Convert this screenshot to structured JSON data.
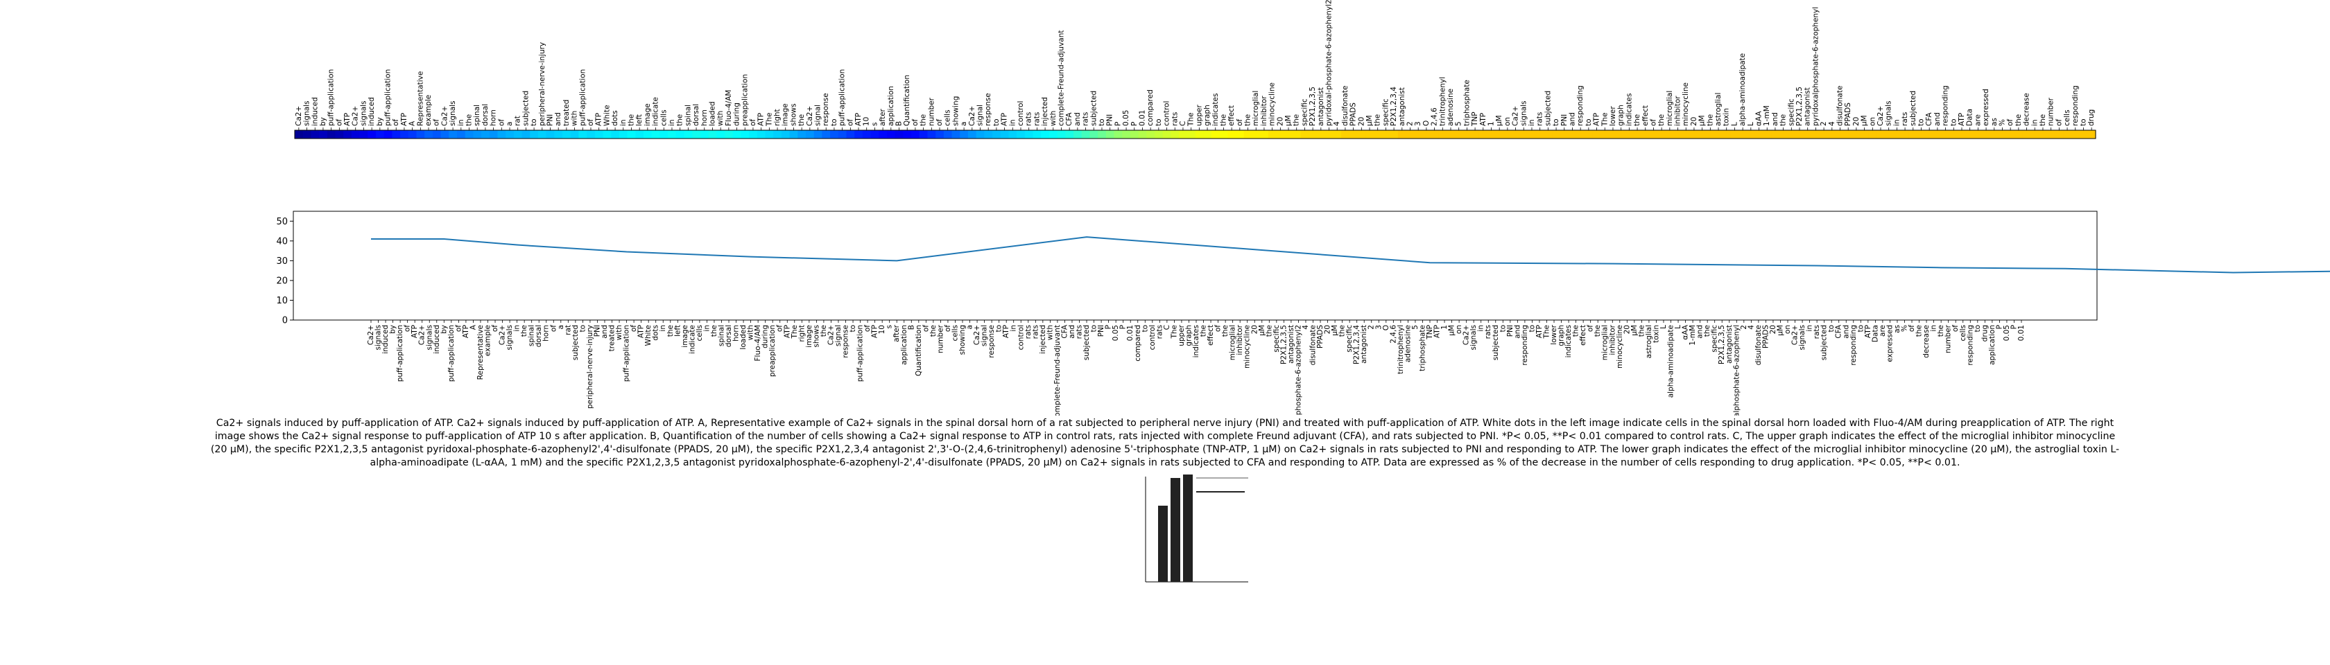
{
  "caption": "Ca2+ signals induced by puff-application of ATP. Ca2+ signals induced by puff-application of ATP. A, Representative example of Ca2+ signals in the spinal dorsal horn of a rat subjected to peripheral nerve injury (PNI) and treated with puff-application of ATP. White dots in the left image indicate cells in the spinal dorsal horn loaded with Fluo-4/AM during preapplication of ATP. The right image shows the Ca2+ signal response to puff-application of ATP 10 s after application. B, Quantification of the number of cells showing a Ca2+ signal response to ATP in control rats, rats injected with complete Freund adjuvant (CFA), and rats subjected to PNI. *P< 0.05, **P< 0.01 compared to control rats. C, The upper graph indicates the effect of the microglial inhibitor minocycline (20 μM), the specific P2X1,2,3,5 antagonist pyridoxal-phosphate-6-azophenyl2',4'-disulfonate (PPADS, 20 μM), the specific P2X1,2,3,4 antagonist 2',3'-O-(2,4,6-trinitrophenyl) adenosine 5'-triphosphate (TNP-ATP, 1 μM) on Ca2+ signals in rats subjected to PNI and responding to ATP. The lower graph indicates the effect of the microglial inhibitor minocycline (20 μM), the astroglial toxin L-alpha-aminoadipate (L-αAA, 1 mM) and the specific P2X1,2,3,5 antagonist pyridoxalphosphate-6-azophenyl-2',4'-disulfonate (PPADS, 20 μM) on Ca2+ signals in rats subjected to CFA and responding to ATP. Data are expressed as % of the decrease in the number of cells responding to drug application. *P< 0.05, **P< 0.01.",
  "colors": {
    "line": "#1f77b4",
    "axis": "#000000"
  },
  "chart_data": [
    {
      "type": "heatmap",
      "colormap": "jet",
      "tokens": [
        "Ca2+",
        "signals",
        "induced",
        "by",
        "puff-application",
        "of",
        "ATP",
        "Ca2+",
        "signals",
        "induced",
        "by",
        "puff-application",
        "of",
        "ATP",
        "A",
        "Representative",
        "example",
        "of",
        "Ca2+",
        "signals",
        "in",
        "the",
        "spinal",
        "dorsal",
        "horn",
        "of",
        "a",
        "rat",
        "subjected",
        "to",
        "peripheral-nerve-injury",
        "PNI",
        "and",
        "treated",
        "with",
        "puff-application",
        "of",
        "ATP",
        "White",
        "dots",
        "in",
        "the",
        "left",
        "image",
        "indicate",
        "cells",
        "in",
        "the",
        "spinal",
        "dorsal",
        "horn",
        "loaded",
        "with",
        "Fluo-4/AM",
        "during",
        "preapplication",
        "of",
        "ATP",
        "The",
        "right",
        "image",
        "shows",
        "the",
        "Ca2+",
        "signal",
        "response",
        "to",
        "puff-application",
        "of",
        "ATP",
        "10",
        "s",
        "after",
        "application",
        "B",
        "Quantification",
        "of",
        "the",
        "number",
        "of",
        "cells",
        "showing",
        "a",
        "Ca2+",
        "signal",
        "response",
        "to",
        "ATP",
        "in",
        "control",
        "rats",
        "rats",
        "injected",
        "with",
        "complete-Freund-adjuvant",
        "CFA",
        "and",
        "rats",
        "subjected",
        "to",
        "PNI",
        "P",
        "0.05",
        "P",
        "0.01",
        "compared",
        "to",
        "control",
        "rats",
        "C",
        "The",
        "upper",
        "graph",
        "indicates",
        "the",
        "effect",
        "of",
        "the",
        "microglial",
        "inhibitor",
        "minocycline",
        "20",
        "μM",
        "the",
        "specific",
        "P2X1,2,3,5",
        "antagonist",
        "pyridoxal-phosphate-6-azophenyl2",
        "4",
        "disulfonate",
        "PPADS",
        "20",
        "μM",
        "the",
        "specific",
        "P2X1,2,3,4",
        "antagonist",
        "2",
        "3",
        "O",
        "2,4,6",
        "trinitrophenyl",
        "adenosine",
        "5",
        "triphosphate",
        "TNP",
        "ATP",
        "1",
        "μM",
        "on",
        "Ca2+",
        "signals",
        "in",
        "rats",
        "subjected",
        "to",
        "PNI",
        "and",
        "responding",
        "to",
        "ATP",
        "The",
        "lower",
        "graph",
        "indicates",
        "the",
        "effect",
        "of",
        "the",
        "microglial",
        "inhibitor",
        "minocycline",
        "20",
        "μM",
        "the",
        "astroglial",
        "toxin",
        "L",
        "alpha-aminoadipate",
        "L",
        "αAA",
        "1-mM",
        "and",
        "the",
        "specific",
        "P2X1,2,3,5",
        "antagonist",
        "pyridoxalphosphate-6-azophenyl",
        "2",
        "4",
        "disulfonate",
        "PPADS",
        "20",
        "μM",
        "on",
        "Ca2+",
        "signals",
        "in",
        "rats",
        "subjected",
        "to",
        "CFA",
        "and",
        "responding",
        "to",
        "ATP",
        "Data",
        "are",
        "expressed",
        "as",
        "%",
        "of",
        "the",
        "decrease",
        "in",
        "the",
        "number",
        "of",
        "cells",
        "responding",
        "to",
        "drug",
        "application",
        "P",
        "0.05",
        "P",
        "0.01"
      ],
      "weights": [
        0.02,
        0.03,
        0.05,
        0.06,
        0.04,
        0.05,
        0.07,
        0.09,
        0.1,
        0.12,
        0.14,
        0.13,
        0.15,
        0.17,
        0.18,
        0.2,
        0.22,
        0.21,
        0.23,
        0.25,
        0.24,
        0.26,
        0.27,
        0.28,
        0.27,
        0.29,
        0.3,
        0.31,
        0.3,
        0.32,
        0.33,
        0.32,
        0.33,
        0.34,
        0.33,
        0.35,
        0.34,
        0.35,
        0.36,
        0.35,
        0.36,
        0.37,
        0.36,
        0.37,
        0.38,
        0.37,
        0.38,
        0.37,
        0.38,
        0.39,
        0.38,
        0.39,
        0.38,
        0.39,
        0.38,
        0.37,
        0.36,
        0.35,
        0.34,
        0.33,
        0.32,
        0.3,
        0.28,
        0.27,
        0.25,
        0.23,
        0.21,
        0.2,
        0.18,
        0.16,
        0.15,
        0.14,
        0.13,
        0.12,
        0.11,
        0.12,
        0.13,
        0.15,
        0.17,
        0.19,
        0.21,
        0.23,
        0.25,
        0.27,
        0.29,
        0.3,
        0.31,
        0.32,
        0.33,
        0.34,
        0.35,
        0.36,
        0.37,
        0.38,
        0.39,
        0.4,
        0.42,
        0.44,
        0.46,
        0.48,
        0.5,
        0.52,
        0.53,
        0.54,
        0.55,
        0.56,
        0.57,
        0.58,
        0.59,
        0.6,
        0.6,
        0.61,
        0.61,
        0.62,
        0.62,
        0.63,
        0.63,
        0.64,
        0.64,
        0.64,
        0.65,
        0.65,
        0.65,
        0.65,
        0.66,
        0.66,
        0.66,
        0.66,
        0.66,
        0.67,
        0.67,
        0.67,
        0.67,
        0.67,
        0.67,
        0.67,
        0.68,
        0.68,
        0.68,
        0.68,
        0.68,
        0.68,
        0.68,
        0.68,
        0.68,
        0.68,
        0.68,
        0.68,
        0.68,
        0.68,
        0.68,
        0.68,
        0.68,
        0.68,
        0.68,
        0.68,
        0.68,
        0.68,
        0.68,
        0.68,
        0.68,
        0.68,
        0.68,
        0.68,
        0.68,
        0.68,
        0.68,
        0.68,
        0.68,
        0.68,
        0.68,
        0.68,
        0.68,
        0.68,
        0.68,
        0.68,
        0.68,
        0.68,
        0.68,
        0.68,
        0.68,
        0.68,
        0.68,
        0.68,
        0.68,
        0.68,
        0.68,
        0.68,
        0.68,
        0.68,
        0.68,
        0.68,
        0.68,
        0.68,
        0.68,
        0.68,
        0.68,
        0.68,
        0.68,
        0.68,
        0.68,
        0.68,
        0.68,
        0.68,
        0.68,
        0.68,
        0.68,
        0.68,
        0.68,
        0.68,
        0.68,
        0.68,
        0.68,
        0.68,
        0.68,
        0.68,
        0.68,
        0.68,
        0.68,
        0.68,
        0.68,
        0.68
      ]
    },
    {
      "type": "line",
      "ylim": [
        0,
        55
      ],
      "yticks": [
        0,
        10,
        20,
        30,
        40,
        50
      ],
      "x_tick_labels": [
        "Ca2+",
        "signals",
        "induced",
        "by",
        "puff-application",
        "of",
        "ATP",
        "Ca2+",
        "signals",
        "induced",
        "by",
        "puff-application",
        "of",
        "ATP",
        "A",
        "Representative",
        "example",
        "of",
        "Ca2+",
        "signals",
        "in",
        "the",
        "spinal",
        "dorsal",
        "horn",
        "of",
        "a",
        "rat",
        "subjected",
        "to",
        "peripheral-nerve-injury",
        "PNI",
        "and",
        "treated",
        "with",
        "puff-application",
        "of",
        "ATP",
        "White",
        "dots",
        "in",
        "the",
        "left",
        "image",
        "indicate",
        "cells",
        "in",
        "the",
        "spinal",
        "dorsal",
        "horn",
        "loaded",
        "with",
        "Fluo-4/AM",
        "during",
        "preapplication",
        "of",
        "ATP",
        "The",
        "right",
        "image",
        "shows",
        "the",
        "Ca2+",
        "signal",
        "response",
        "to",
        "puff-application",
        "of",
        "ATP",
        "10",
        "s",
        "after",
        "application",
        "B",
        "Quantification",
        "of",
        "the",
        "number",
        "of",
        "cells",
        "showing",
        "a",
        "Ca2+",
        "signal",
        "response",
        "to",
        "ATP",
        "in",
        "control",
        "rats",
        "rats",
        "injected",
        "with",
        "complete-Freund-adjuvant",
        "CFA",
        "and",
        "rats",
        "subjected",
        "to",
        "PNI",
        "P",
        "0.05",
        "P",
        "0.01",
        "compared",
        "to",
        "control",
        "rats",
        "C",
        "The",
        "upper",
        "graph",
        "indicates",
        "the",
        "effect",
        "of",
        "the",
        "microglial",
        "inhibitor",
        "minocycline",
        "20",
        "μM",
        "the",
        "specific",
        "P2X1,2,3,5",
        "antagonist",
        "pyridoxal-phosphate-6-azophenyl2",
        "4",
        "disulfonate",
        "PPADS",
        "20",
        "μM",
        "the",
        "specific",
        "P2X1,2,3,4",
        "antagonist",
        "2",
        "3",
        "O",
        "2,4,6",
        "trinitrophenyl",
        "adenosine",
        "5",
        "triphosphate",
        "TNP",
        "ATP",
        "1",
        "μM",
        "on",
        "Ca2+",
        "signals",
        "in",
        "rats",
        "subjected",
        "to",
        "PNI",
        "and",
        "responding",
        "to",
        "ATP",
        "The",
        "lower",
        "graph",
        "indicates",
        "the",
        "effect",
        "of",
        "the",
        "microglial",
        "inhibitor",
        "minocycline",
        "20",
        "μM",
        "the",
        "astroglial",
        "toxin",
        "L",
        "alpha-aminoadipate",
        "L",
        "αAA",
        "1-mM",
        "and",
        "the",
        "specific",
        "P2X1,2,3,5",
        "antagonist",
        "pyridoxalphosphate-6-azophenyl",
        "2",
        "4",
        "disulfonate",
        "PPADS",
        "20",
        "μM",
        "on",
        "Ca2+",
        "signals",
        "in",
        "rats",
        "subjected",
        "to",
        "CFA",
        "and",
        "responding",
        "to",
        "ATP",
        "Data",
        "are",
        "expressed",
        "as",
        "%",
        "of",
        "the",
        "decrease",
        "in",
        "the",
        "number",
        "of",
        "cells",
        "responding",
        "to",
        "drug",
        "application",
        "P",
        "0.05",
        "P",
        "0.01"
      ],
      "series": [
        {
          "x_index": [
            0,
            10,
            20,
            35,
            52,
            72,
            98,
            145,
            170,
            198,
            215,
            232,
            255,
            276
          ],
          "values": [
            41,
            41,
            38,
            34.5,
            32,
            30,
            42,
            29,
            28.5,
            27.5,
            26.5,
            26,
            24,
            25
          ]
        }
      ]
    }
  ]
}
